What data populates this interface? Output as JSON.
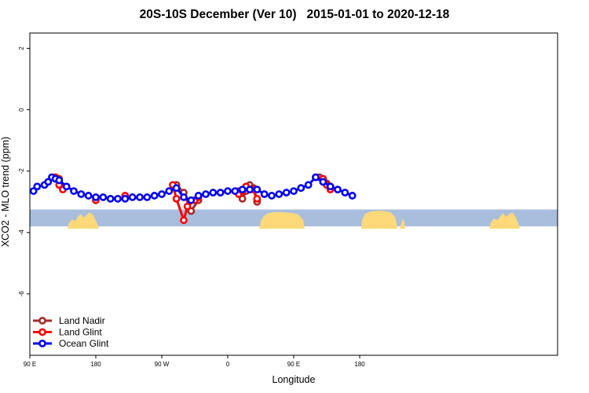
{
  "chart_data": {
    "type": "line",
    "title": "20S-10S December (Ver 10)   2015-01-01 to 2020-12-18",
    "xlabel": "Longitude",
    "ylabel": "XCO2 - MLO trend (ppm)",
    "xlim": [
      90,
      450
    ],
    "ylim": [
      -8.0,
      2.5
    ],
    "xticks": [
      {
        "value": 90,
        "label": "90 E"
      },
      {
        "value": 180,
        "label": "180"
      },
      {
        "value": 270,
        "label": "90 W"
      },
      {
        "value": 360,
        "label": "0"
      },
      {
        "value": 450,
        "label": "90 E"
      },
      {
        "value": 540,
        "label": "180"
      }
    ],
    "yticks": [
      {
        "value": 2,
        "label": "2"
      },
      {
        "value": 0,
        "label": "0"
      },
      {
        "value": -2,
        "label": "-2"
      },
      {
        "value": -4,
        "label": "-4"
      },
      {
        "value": -6,
        "label": "-6"
      }
    ],
    "legend_position": "bottom-left",
    "land_band": {
      "y_top": -3.25,
      "y_bottom": -3.8,
      "ocean_color": "#a9bedd",
      "land_color": "#fdd97a"
    },
    "series": [
      {
        "name": "Land Nadir",
        "color": "#a52a2a",
        "segments": [
          {
            "x": [
              125,
              130,
              135
            ],
            "y": [
              -2.25,
              -2.25,
              -2.5
            ]
          },
          {
            "x": [
              290,
              300,
              310,
              320
            ],
            "y": [
              -2.45,
              -2.7,
              -3.3,
              -2.95
            ]
          },
          {
            "x": [
              375,
              380,
              385,
              390,
              395,
              400
            ],
            "y": [
              -2.65,
              -2.9,
              -2.65,
              -2.45,
              -2.55,
              -3.0
            ]
          },
          {
            "x": [
              485,
              490,
              495,
              500
            ],
            "y": [
              -2.2,
              -2.25,
              -2.4,
              -2.5
            ]
          }
        ]
      },
      {
        "name": "Land Glint",
        "color": "#ff0000",
        "segments": [
          {
            "x": [
              125,
              130,
              135
            ],
            "y": [
              -2.2,
              -2.45,
              -2.6
            ]
          },
          {
            "x": [
              180
            ],
            "y": [
              -2.95
            ]
          },
          {
            "x": [
              220
            ],
            "y": [
              -2.8
            ]
          },
          {
            "x": [
              285,
              290,
              300,
              305,
              315,
              320
            ],
            "y": [
              -2.45,
              -2.9,
              -3.6,
              -3.15,
              -2.95,
              -2.85
            ]
          },
          {
            "x": [
              375,
              380,
              385,
              390,
              395,
              400
            ],
            "y": [
              -2.75,
              -2.65,
              -2.5,
              -2.6,
              -2.6,
              -2.9
            ]
          },
          {
            "x": [
              480,
              490,
              495,
              500
            ],
            "y": [
              -2.2,
              -2.25,
              -2.45,
              -2.6
            ]
          }
        ]
      },
      {
        "name": "Ocean Glint",
        "color": "#0000ee",
        "segments": [
          {
            "x": [
              95,
              100,
              110,
              115,
              120,
              125,
              130,
              140,
              150,
              160,
              170,
              180,
              190,
              200,
              210,
              220,
              230,
              240,
              250,
              260,
              270,
              280,
              290,
              300,
              310,
              320,
              330,
              340,
              350,
              360,
              370,
              380,
              390,
              400,
              410,
              420,
              430,
              440,
              450,
              460,
              470,
              480,
              490,
              500,
              510,
              520,
              530
            ],
            "y": [
              -2.65,
              -2.5,
              -2.45,
              -2.35,
              -2.2,
              -2.25,
              -2.3,
              -2.5,
              -2.65,
              -2.75,
              -2.8,
              -2.85,
              -2.85,
              -2.9,
              -2.9,
              -2.9,
              -2.85,
              -2.85,
              -2.85,
              -2.8,
              -2.75,
              -2.65,
              -2.55,
              -2.85,
              -2.95,
              -2.8,
              -2.75,
              -2.7,
              -2.7,
              -2.65,
              -2.65,
              -2.6,
              -2.6,
              -2.6,
              -2.75,
              -2.8,
              -2.75,
              -2.7,
              -2.65,
              -2.55,
              -2.45,
              -2.2,
              -2.35,
              -2.5,
              -2.6,
              -2.7,
              -2.8
            ]
          }
        ]
      }
    ]
  }
}
